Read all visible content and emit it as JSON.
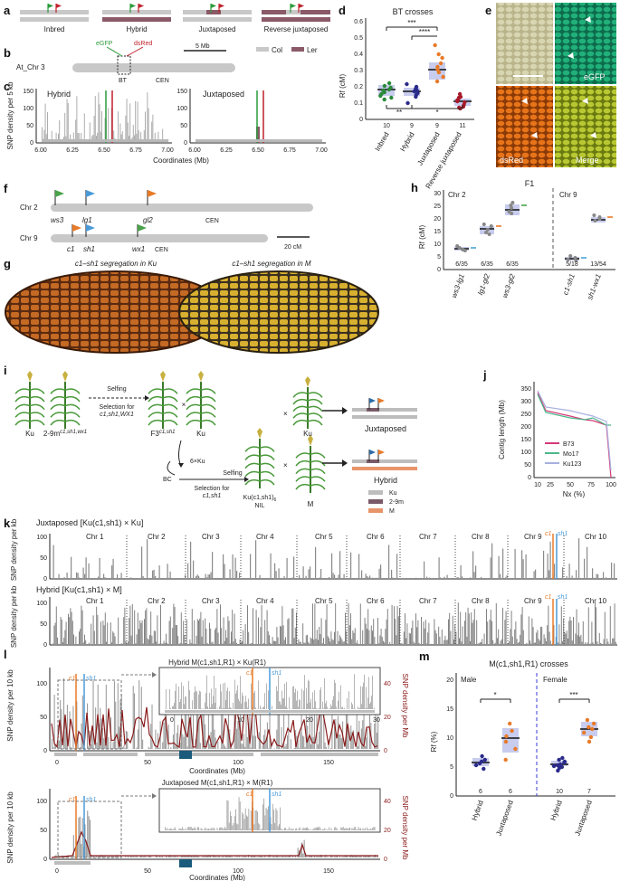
{
  "panels": {
    "a": "a",
    "b": "b",
    "c": "c",
    "d": "d",
    "e": "e",
    "f": "f",
    "g": "g",
    "h": "h",
    "i": "i",
    "j": "j",
    "k": "k",
    "l": "l",
    "m": "m"
  },
  "a": {
    "labels": [
      "Inbred",
      "Hybrid",
      "Juxtaposed",
      "Reverse juxtaposed"
    ]
  },
  "b": {
    "chr": "At_Chr 3",
    "egfp": "eGFP",
    "dsred": "dsRed",
    "bt": "BT",
    "cen": "CEN",
    "scale": "5 Mb",
    "leg_col": "Col",
    "leg_ler": "Ler"
  },
  "c": {
    "ylabel": "SNP density per 5 kb",
    "xlabel": "Coordinates (Mb)",
    "left_title": "Hybrid",
    "right_title": "Juxtaposed",
    "yticks": [
      "0",
      "50",
      "100",
      "150"
    ],
    "xticks": [
      "6.00",
      "6.25",
      "6.50",
      "6.75",
      "7.00"
    ]
  },
  "d": {
    "title": "BT crosses",
    "ylabel": "Rf (cM)",
    "yticks": [
      "0",
      "0.1",
      "0.2",
      "0.3",
      "0.4",
      "0.5",
      "0.6"
    ],
    "groups": [
      "Inbred",
      "Hybrid",
      "Juxtaposed",
      "Reverse juxtaposed"
    ],
    "n": [
      "10",
      "9",
      "9",
      "11"
    ],
    "sig": [
      "***",
      "****",
      "**",
      "*"
    ]
  },
  "e": {
    "egfp": "eGFP",
    "dsred": "dsRed",
    "merge": "Merge"
  },
  "f": {
    "chr2": "Chr 2",
    "chr9": "Chr 9",
    "ws3": "ws3",
    "lg1": "lg1",
    "gl2": "gl2",
    "c1": "c1",
    "sh1": "sh1",
    "wx1": "wx1",
    "cen": "CEN",
    "scale": "20 cM"
  },
  "g": {
    "left": "c1–sh1 segregation in Ku",
    "right": "c1–sh1 segregation in M"
  },
  "h": {
    "title": "F1",
    "ylabel": "Rf (cM)",
    "chr2": "Chr 2",
    "chr9": "Chr 9",
    "yticks": [
      "0",
      "5",
      "10",
      "15",
      "20",
      "25",
      "30"
    ],
    "xticks": [
      "ws3-lg1",
      "lg1-gl2",
      "ws3-gl2",
      "c1-sh1",
      "sh1-wx1"
    ],
    "n": [
      "6/35",
      "6/35",
      "6/35",
      "5/18",
      "13/54"
    ]
  },
  "i": {
    "ku": "Ku",
    "p29": "2-9m",
    "sup29": "c1,sh1,wx1",
    "selfing": "Selfing",
    "sel1": "Selection for",
    "sel1b": "c1,sh1,WX1",
    "f3": "F3",
    "supf3": "c1,sh1",
    "bc": "BC",
    "xku": "6×Ku",
    "sel2": "Selection for",
    "sel2b": "c1,sh1",
    "selfing2": "Selfing",
    "nil": "Ku(c1,sh1)",
    "nilsub": "6",
    "nilsuf": "NIL",
    "m": "M",
    "juxt": "Juxtaposed",
    "hybrid": "Hybrid",
    "leg": [
      "Ku",
      "2-9m",
      "M"
    ]
  },
  "j": {
    "ylabel": "Contig length (Mb)",
    "xlabel": "Nx (%)",
    "yticks": [
      "0",
      "50",
      "100",
      "150",
      "200",
      "250",
      "300",
      "350"
    ],
    "xticks": [
      "10",
      "25",
      "50",
      "75",
      "100"
    ],
    "series": [
      "B73",
      "Mo17",
      "Ku123"
    ]
  },
  "k": {
    "ylabel": "SNP density per kb",
    "top_title": "Juxtaposed [Ku(c1,sh1) × Ku]",
    "bottom_title": "Hybrid [Ku(c1,sh1) × M]",
    "chrs": [
      "Chr 1",
      "Chr 2",
      "Chr 3",
      "Chr 4",
      "Chr 5",
      "Chr 6",
      "Chr 7",
      "Chr 8",
      "Chr 9",
      "Chr 10"
    ],
    "c1": "c1",
    "sh1": "sh1",
    "yticks": [
      "0",
      "50",
      "100"
    ]
  },
  "l": {
    "top_title": "Hybrid M(c1,sh1,R1) × Ku(R1)",
    "bottom_title": "Juxtaposed M(c1,sh1,R1) × M(R1)",
    "ylabel": "SNP density per 10 kb",
    "ylabel2": "SNP density per Mb",
    "xlabel": "Coordinates (Mb)",
    "xticks": [
      "0",
      "50",
      "100",
      "150"
    ],
    "inset_xticks": [
      "0",
      "10",
      "20",
      "30"
    ],
    "yticks": [
      "0",
      "50",
      "100"
    ],
    "y2ticks": [
      "0",
      "20",
      "40"
    ],
    "c1": "c1",
    "sh1": "sh1"
  },
  "m": {
    "title": "M(c1,sh1,R1) crosses",
    "ylabel": "Rf (%)",
    "male": "Male",
    "female": "Female",
    "yticks": [
      "0",
      "5",
      "10",
      "15",
      "20"
    ],
    "groups": [
      "Hybrid",
      "Juxtaposed",
      "Hybrid",
      "Juxtaposed"
    ],
    "n": [
      "6",
      "6",
      "10",
      "7"
    ],
    "sig": [
      "*",
      "***"
    ]
  }
}
